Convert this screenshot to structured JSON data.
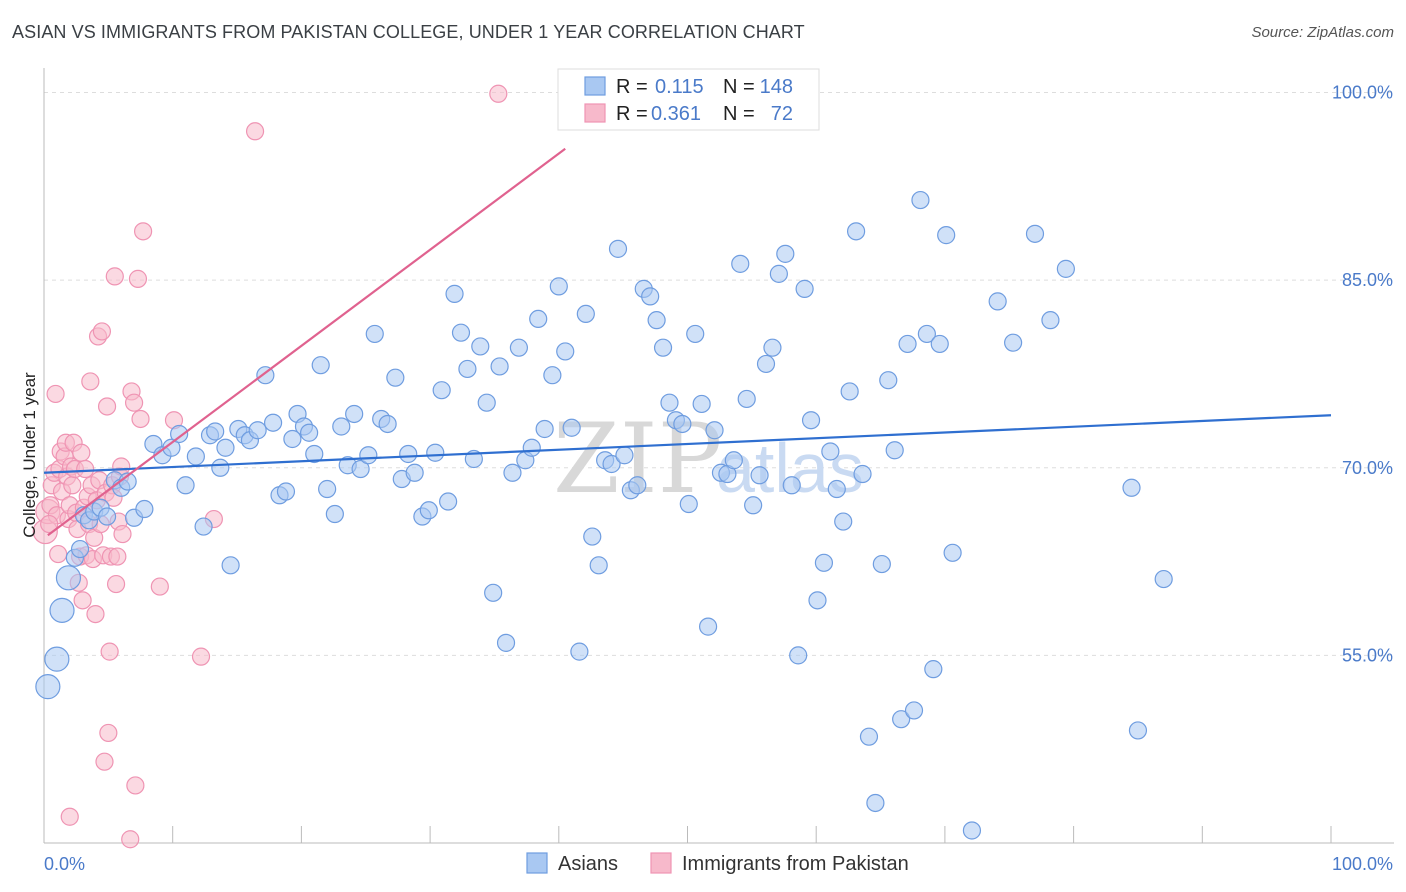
{
  "header": {
    "title": "ASIAN VS IMMIGRANTS FROM PAKISTAN COLLEGE, UNDER 1 YEAR CORRELATION CHART",
    "source": "Source: ZipAtlas.com"
  },
  "watermark": {
    "zip": "ZIP",
    "atlas": "atlas"
  },
  "legend_box": {
    "rows": [
      {
        "r_label": "R =",
        "r_value": "0.115",
        "n_label": "N =",
        "n_value": "148",
        "color": "#4a7ac9"
      },
      {
        "r_label": "R =",
        "r_value": "0.361",
        "n_label": "N =",
        "n_value": "72",
        "color": "#e8709a"
      }
    ]
  },
  "colors": {
    "asian_fill": "#a9c8f2",
    "asian_stroke": "#6f9de0",
    "asian_line": "#2f6fd0",
    "pak_fill": "#f7b9cb",
    "pak_stroke": "#ef94b3",
    "pak_line": "#e0628f",
    "grid": "#dddddd",
    "tick_text": "#4a7ac9"
  },
  "chart_data": {
    "type": "scatter",
    "title": "ASIAN VS IMMIGRANTS FROM PAKISTAN COLLEGE, UNDER 1 YEAR CORRELATION CHART",
    "xlabel": "",
    "ylabel": "College, Under 1 year",
    "xlim": [
      0,
      100
    ],
    "ylim": [
      40,
      101
    ],
    "x_tick_labels": [
      "0.0%",
      "100.0%"
    ],
    "y_ticks": [
      55,
      70,
      85,
      100
    ],
    "y_tick_labels": [
      "55.0%",
      "70.0%",
      "85.0%",
      "100.0%"
    ],
    "grid": true,
    "legend_position": "bottom-center",
    "series": [
      {
        "name": "Asians",
        "r": 0.115,
        "n": 148,
        "trend": {
          "x": [
            0,
            100
          ],
          "y": [
            69.6,
            74.2
          ]
        },
        "points": [
          [
            0.3,
            52.5
          ],
          [
            1.0,
            54.7
          ],
          [
            1.4,
            58.6
          ],
          [
            1.9,
            61.2
          ],
          [
            2.4,
            62.8
          ],
          [
            2.8,
            63.5
          ],
          [
            3.1,
            66.2
          ],
          [
            3.5,
            65.8
          ],
          [
            3.9,
            66.5
          ],
          [
            4.4,
            66.8
          ],
          [
            4.9,
            66.1
          ],
          [
            5.5,
            69.0
          ],
          [
            6.0,
            68.4
          ],
          [
            6.5,
            68.9
          ],
          [
            7.0,
            66.0
          ],
          [
            7.8,
            66.7
          ],
          [
            8.5,
            71.9
          ],
          [
            9.2,
            71.0
          ],
          [
            9.9,
            71.6
          ],
          [
            10.5,
            72.7
          ],
          [
            11.0,
            68.6
          ],
          [
            11.8,
            70.9
          ],
          [
            12.4,
            65.3
          ],
          [
            12.9,
            72.6
          ],
          [
            13.3,
            72.9
          ],
          [
            13.7,
            70.0
          ],
          [
            14.1,
            71.6
          ],
          [
            14.5,
            62.2
          ],
          [
            15.1,
            73.1
          ],
          [
            15.6,
            72.6
          ],
          [
            16.0,
            72.2
          ],
          [
            16.6,
            73.0
          ],
          [
            17.2,
            77.4
          ],
          [
            17.8,
            73.6
          ],
          [
            18.3,
            67.8
          ],
          [
            18.8,
            68.1
          ],
          [
            19.3,
            72.3
          ],
          [
            19.7,
            74.3
          ],
          [
            20.2,
            73.3
          ],
          [
            20.6,
            72.8
          ],
          [
            21.0,
            71.1
          ],
          [
            21.5,
            78.2
          ],
          [
            22.0,
            68.3
          ],
          [
            22.6,
            66.3
          ],
          [
            23.1,
            73.3
          ],
          [
            23.6,
            70.2
          ],
          [
            24.1,
            74.3
          ],
          [
            24.6,
            69.9
          ],
          [
            25.2,
            71.0
          ],
          [
            25.7,
            80.7
          ],
          [
            26.2,
            73.9
          ],
          [
            26.7,
            73.5
          ],
          [
            27.3,
            77.2
          ],
          [
            27.8,
            69.1
          ],
          [
            28.3,
            71.1
          ],
          [
            28.8,
            69.6
          ],
          [
            29.4,
            66.1
          ],
          [
            29.9,
            66.6
          ],
          [
            30.4,
            71.2
          ],
          [
            30.9,
            76.2
          ],
          [
            31.4,
            67.3
          ],
          [
            31.9,
            83.9
          ],
          [
            32.4,
            80.8
          ],
          [
            32.9,
            77.9
          ],
          [
            33.4,
            70.7
          ],
          [
            33.9,
            79.7
          ],
          [
            34.4,
            75.2
          ],
          [
            34.9,
            60.0
          ],
          [
            35.4,
            78.1
          ],
          [
            35.9,
            56.0
          ],
          [
            36.4,
            69.6
          ],
          [
            36.9,
            79.6
          ],
          [
            37.4,
            70.6
          ],
          [
            37.9,
            71.6
          ],
          [
            38.4,
            81.9
          ],
          [
            38.9,
            73.1
          ],
          [
            39.5,
            77.4
          ],
          [
            40.0,
            84.5
          ],
          [
            40.5,
            79.3
          ],
          [
            41.0,
            73.2
          ],
          [
            41.6,
            55.3
          ],
          [
            42.1,
            82.3
          ],
          [
            42.6,
            64.5
          ],
          [
            43.1,
            62.2
          ],
          [
            43.6,
            70.6
          ],
          [
            44.1,
            70.3
          ],
          [
            44.6,
            87.5
          ],
          [
            45.1,
            71.0
          ],
          [
            45.6,
            68.2
          ],
          [
            46.1,
            68.6
          ],
          [
            46.6,
            84.3
          ],
          [
            47.1,
            83.7
          ],
          [
            47.6,
            81.8
          ],
          [
            48.1,
            79.6
          ],
          [
            48.6,
            75.2
          ],
          [
            49.1,
            73.8
          ],
          [
            49.6,
            73.5
          ],
          [
            50.1,
            67.1
          ],
          [
            50.6,
            80.7
          ],
          [
            51.1,
            75.1
          ],
          [
            51.6,
            57.3
          ],
          [
            52.1,
            73.0
          ],
          [
            52.6,
            69.6
          ],
          [
            53.1,
            69.5
          ],
          [
            53.6,
            70.6
          ],
          [
            54.1,
            86.3
          ],
          [
            54.6,
            75.5
          ],
          [
            55.1,
            67.0
          ],
          [
            55.6,
            69.4
          ],
          [
            56.1,
            78.3
          ],
          [
            56.6,
            79.6
          ],
          [
            57.1,
            85.5
          ],
          [
            57.6,
            87.1
          ],
          [
            58.1,
            68.6
          ],
          [
            58.6,
            55.0
          ],
          [
            59.1,
            84.3
          ],
          [
            59.6,
            73.8
          ],
          [
            60.1,
            59.4
          ],
          [
            60.6,
            62.4
          ],
          [
            61.1,
            71.3
          ],
          [
            61.6,
            68.3
          ],
          [
            62.1,
            65.7
          ],
          [
            62.6,
            76.1
          ],
          [
            63.1,
            88.9
          ],
          [
            63.6,
            69.5
          ],
          [
            64.1,
            48.5
          ],
          [
            64.6,
            43.2
          ],
          [
            65.1,
            62.3
          ],
          [
            65.6,
            77.0
          ],
          [
            66.1,
            71.4
          ],
          [
            66.6,
            49.9
          ],
          [
            67.1,
            79.9
          ],
          [
            67.6,
            50.6
          ],
          [
            68.1,
            91.4
          ],
          [
            68.6,
            80.7
          ],
          [
            69.1,
            53.9
          ],
          [
            69.6,
            79.9
          ],
          [
            70.1,
            88.6
          ],
          [
            70.6,
            63.2
          ],
          [
            72.1,
            41.0
          ],
          [
            74.1,
            83.3
          ],
          [
            75.3,
            80.0
          ],
          [
            77.0,
            88.7
          ],
          [
            78.2,
            81.8
          ],
          [
            79.4,
            85.9
          ],
          [
            84.5,
            68.4
          ],
          [
            85.0,
            49.0
          ],
          [
            87.0,
            61.1
          ]
        ]
      },
      {
        "name": "Immigrants from Pakistan",
        "r": 0.361,
        "n": 72,
        "trend": {
          "x": [
            0.3,
            40.5
          ],
          "y": [
            64.6,
            95.5
          ]
        },
        "points": [
          [
            0.1,
            64.9
          ],
          [
            0.3,
            66.5
          ],
          [
            0.5,
            67.0
          ],
          [
            0.6,
            68.6
          ],
          [
            0.8,
            69.6
          ],
          [
            0.9,
            75.9
          ],
          [
            1.0,
            66.2
          ],
          [
            1.2,
            69.9
          ],
          [
            1.3,
            71.3
          ],
          [
            1.4,
            68.1
          ],
          [
            1.6,
            70.9
          ],
          [
            1.7,
            72.0
          ],
          [
            1.8,
            69.3
          ],
          [
            1.9,
            65.9
          ],
          [
            2.0,
            67.0
          ],
          [
            2.1,
            70.1
          ],
          [
            2.2,
            68.6
          ],
          [
            2.3,
            72.0
          ],
          [
            2.4,
            69.9
          ],
          [
            2.5,
            66.4
          ],
          [
            2.6,
            65.1
          ],
          [
            2.7,
            60.8
          ],
          [
            2.8,
            62.9
          ],
          [
            2.9,
            71.2
          ],
          [
            3.0,
            59.4
          ],
          [
            3.1,
            66.8
          ],
          [
            3.2,
            69.9
          ],
          [
            3.3,
            63.0
          ],
          [
            3.4,
            67.7
          ],
          [
            3.5,
            65.5
          ],
          [
            3.6,
            76.9
          ],
          [
            3.7,
            68.6
          ],
          [
            3.8,
            62.7
          ],
          [
            3.9,
            64.4
          ],
          [
            4.0,
            58.3
          ],
          [
            4.1,
            67.4
          ],
          [
            4.2,
            80.5
          ],
          [
            4.3,
            69.0
          ],
          [
            4.4,
            65.5
          ],
          [
            4.5,
            80.9
          ],
          [
            4.6,
            63.0
          ],
          [
            4.7,
            46.5
          ],
          [
            4.8,
            68.0
          ],
          [
            4.9,
            74.9
          ],
          [
            5.0,
            48.8
          ],
          [
            5.1,
            55.3
          ],
          [
            5.2,
            62.9
          ],
          [
            5.3,
            68.6
          ],
          [
            5.4,
            67.6
          ],
          [
            5.5,
            85.3
          ],
          [
            5.6,
            60.7
          ],
          [
            5.7,
            62.9
          ],
          [
            5.8,
            65.7
          ],
          [
            5.9,
            69.3
          ],
          [
            6.0,
            70.1
          ],
          [
            6.1,
            64.7
          ],
          [
            6.7,
            40.3
          ],
          [
            6.8,
            76.1
          ],
          [
            7.0,
            75.2
          ],
          [
            7.1,
            44.6
          ],
          [
            7.3,
            85.1
          ],
          [
            7.5,
            73.9
          ],
          [
            7.7,
            88.9
          ],
          [
            9.0,
            60.5
          ],
          [
            10.1,
            73.8
          ],
          [
            12.2,
            54.9
          ],
          [
            13.2,
            65.9
          ],
          [
            16.4,
            96.9
          ],
          [
            35.3,
            99.9
          ],
          [
            2.0,
            42.1
          ],
          [
            0.4,
            65.5
          ],
          [
            1.1,
            63.1
          ]
        ]
      }
    ]
  },
  "bottom_legend": [
    {
      "label": "Asians",
      "color_key": "asian"
    },
    {
      "label": "Immigrants from Pakistan",
      "color_key": "pak"
    }
  ]
}
